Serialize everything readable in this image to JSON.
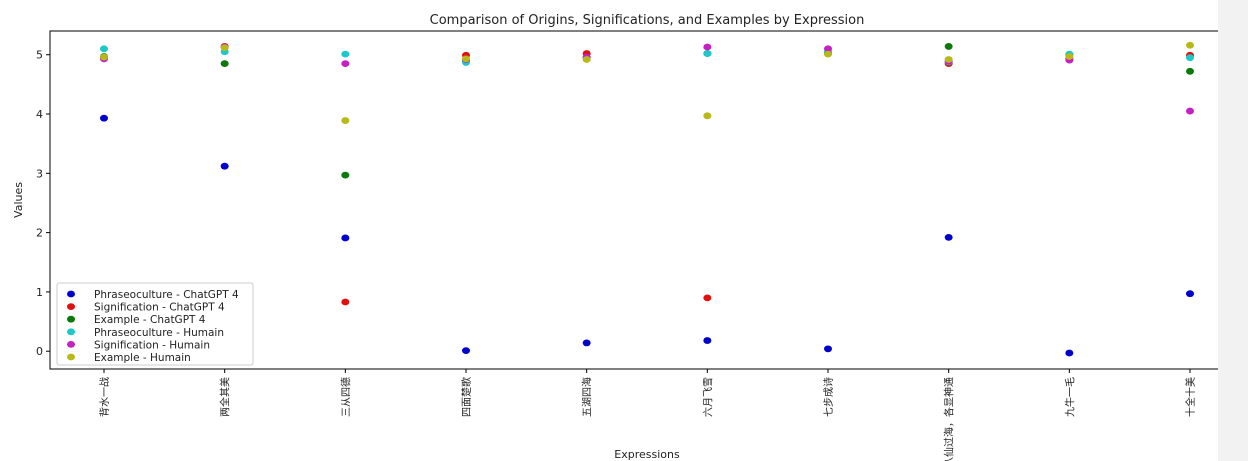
{
  "chart_data": {
    "type": "scatter",
    "title": "Comparison of Origins, Significations, and Examples by Expression",
    "xlabel": "Expressions",
    "ylabel": "Values",
    "ylim": [
      -0.3,
      5.4
    ],
    "yticks": [
      "0",
      "1",
      "2",
      "3",
      "4",
      "5"
    ],
    "grid": false,
    "legend_position": "lower-left",
    "categories": [
      "背水一战",
      "两全其美",
      "三从四德",
      "四面楚歌",
      "五湖四海",
      "六月飞雪",
      "七步成诗",
      "八仙过海，各显神通",
      "九牛一毛",
      "十全十美"
    ],
    "series": [
      {
        "name": "Phraseoculture - ChatGPT 4",
        "color": "#0000cc",
        "values": [
          3.93,
          3.12,
          1.91,
          0.01,
          0.14,
          0.18,
          0.04,
          1.92,
          -0.03,
          0.97
        ]
      },
      {
        "name": "Signification - ChatGPT 4",
        "color": "#e01010",
        "values": [
          4.95,
          5.14,
          0.83,
          4.99,
          5.02,
          0.9,
          5.03,
          4.85,
          4.94,
          4.99
        ]
      },
      {
        "name": "Example - ChatGPT 4",
        "color": "#0a7a0a",
        "values": [
          4.97,
          4.85,
          2.97,
          4.9,
          4.95,
          5.02,
          5.03,
          5.14,
          5.0,
          4.72
        ]
      },
      {
        "name": "Phraseoculture - Humain",
        "color": "#1cc8c8",
        "values": [
          5.1,
          5.05,
          5.01,
          4.87,
          4.95,
          5.02,
          5.05,
          4.88,
          5.01,
          4.95
        ]
      },
      {
        "name": "Signification - Humain",
        "color": "#c420c4",
        "values": [
          4.93,
          5.13,
          4.85,
          4.92,
          4.96,
          5.13,
          5.1,
          4.89,
          4.91,
          4.05
        ]
      },
      {
        "name": "Example - Humain",
        "color": "#b8b81a",
        "values": [
          4.96,
          5.12,
          3.89,
          4.93,
          4.92,
          3.97,
          5.01,
          4.92,
          4.97,
          5.16
        ]
      }
    ]
  }
}
